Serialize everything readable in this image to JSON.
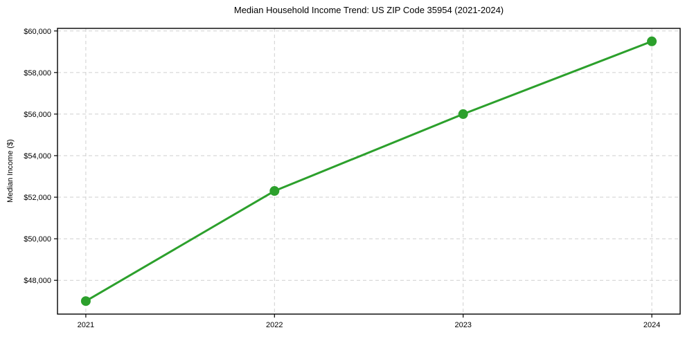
{
  "figure": {
    "background": "#ffffff"
  },
  "chart_data": {
    "type": "line",
    "title": "Median Household Income Trend: US ZIP Code 35954 (2021-2024)",
    "ylabel": "Median Income ($)",
    "xlabel": "",
    "categories": [
      "2021",
      "2022",
      "2023",
      "2024"
    ],
    "series": [
      {
        "values": [
          47000,
          52300,
          56000,
          59500
        ],
        "color": "#2ca02c",
        "line_width": 3,
        "marker": "circle",
        "marker_size": 7
      }
    ],
    "ylim": [
      46375,
      60125
    ],
    "yticks": [
      48000,
      50000,
      52000,
      54000,
      56000,
      58000,
      60000
    ],
    "ytick_labels": [
      "$48,000",
      "$50,000",
      "$52,000",
      "$54,000",
      "$56,000",
      "$58,000",
      "$60,000"
    ],
    "grid": {
      "show": true,
      "color": "#cfcfcf",
      "style": "dashed"
    },
    "axis_color": "#000000",
    "legend": {
      "show": false
    }
  }
}
